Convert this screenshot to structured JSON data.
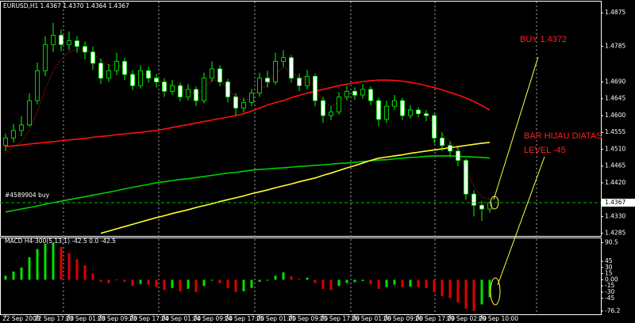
{
  "chart_data": [
    {
      "type": "candlestick",
      "title": "EURUSD,H1  1.4367 1.4370 1.4364 1.4367",
      "categories": [
        "22 Sep 2008",
        null,
        null,
        null,
        "22 Sep 17:00",
        null,
        null,
        null,
        "23 Sep 01:00",
        null,
        null,
        null,
        "23 Sep 09:00",
        null,
        null,
        null,
        "23 Sep 17:00",
        null,
        null,
        null,
        "24 Sep 01:00",
        null,
        null,
        null,
        "24 Sep 09:00",
        null,
        null,
        null,
        "24 Sep 17:00",
        null,
        null,
        null,
        "25 Sep 01:00",
        null,
        null,
        null,
        "25 Sep 09:00",
        null,
        null,
        null,
        "25 Sep 17:00",
        null,
        null,
        null,
        "26 Sep 01:00",
        null,
        null,
        null,
        "26 Sep 09:00",
        null,
        null,
        null,
        "26 Sep 17:00",
        null,
        null,
        null,
        "29 Sep 02:00",
        null,
        null,
        null,
        "29 Sep 10:00",
        null
      ],
      "open": [
        1.452,
        1.454,
        1.456,
        1.4575,
        1.464,
        1.472,
        1.479,
        1.4815,
        1.479,
        1.48,
        1.4785,
        1.477,
        1.474,
        1.47,
        1.472,
        1.4745,
        1.471,
        1.468,
        1.472,
        1.47,
        1.469,
        1.4665,
        1.468,
        1.465,
        1.467,
        1.464,
        1.47,
        1.4725,
        1.469,
        1.465,
        1.462,
        1.4635,
        1.466,
        1.47,
        1.469,
        1.4745,
        1.4755,
        1.47,
        1.468,
        1.4705,
        1.464,
        1.46,
        1.461,
        1.465,
        1.4665,
        1.4655,
        1.467,
        1.464,
        1.459,
        1.4625,
        1.464,
        1.46,
        1.4615,
        1.4605,
        1.46,
        1.454,
        1.452,
        1.4505,
        1.448,
        1.439,
        1.436,
        1.435
      ],
      "high": [
        1.4552,
        1.4578,
        1.4598,
        1.466,
        1.4742,
        1.4812,
        1.4848,
        1.483,
        1.4825,
        1.4812,
        1.4798,
        1.4785,
        1.4752,
        1.4738,
        1.4768,
        1.4755,
        1.4722,
        1.4735,
        1.473,
        1.4712,
        1.47,
        1.4695,
        1.4688,
        1.4685,
        1.4678,
        1.4715,
        1.4745,
        1.4735,
        1.4698,
        1.466,
        1.4648,
        1.4672,
        1.4715,
        1.472,
        1.4768,
        1.4775,
        1.4762,
        1.4712,
        1.4722,
        1.4712,
        1.465,
        1.4625,
        1.4662,
        1.468,
        1.4675,
        1.4684,
        1.4678,
        1.4648,
        1.464,
        1.4655,
        1.4648,
        1.4628,
        1.4622,
        1.4615,
        1.4605,
        1.4555,
        1.4532,
        1.4515,
        1.4485,
        1.44,
        1.4372,
        1.437
      ],
      "low": [
        1.4505,
        1.4528,
        1.4545,
        1.457,
        1.463,
        1.4705,
        1.477,
        1.4772,
        1.4775,
        1.4768,
        1.475,
        1.4722,
        1.4685,
        1.469,
        1.4708,
        1.4695,
        1.4668,
        1.4672,
        1.4688,
        1.4675,
        1.465,
        1.4655,
        1.4638,
        1.464,
        1.4625,
        1.4632,
        1.469,
        1.4678,
        1.4635,
        1.46,
        1.4608,
        1.4625,
        1.465,
        1.4675,
        1.4682,
        1.473,
        1.4688,
        1.4665,
        1.467,
        1.4625,
        1.458,
        1.4588,
        1.4602,
        1.464,
        1.4642,
        1.4645,
        1.4628,
        1.4572,
        1.458,
        1.4615,
        1.4588,
        1.4592,
        1.4595,
        1.4585,
        1.4525,
        1.4505,
        1.449,
        1.4465,
        1.4375,
        1.433,
        1.4318,
        1.434
      ],
      "close": [
        1.454,
        1.456,
        1.4575,
        1.464,
        1.472,
        1.479,
        1.4815,
        1.479,
        1.48,
        1.4785,
        1.477,
        1.474,
        1.47,
        1.472,
        1.4745,
        1.471,
        1.468,
        1.472,
        1.47,
        1.469,
        1.4665,
        1.468,
        1.465,
        1.467,
        1.464,
        1.47,
        1.4725,
        1.469,
        1.465,
        1.462,
        1.4635,
        1.466,
        1.47,
        1.469,
        1.4745,
        1.4755,
        1.47,
        1.468,
        1.4705,
        1.464,
        1.46,
        1.461,
        1.465,
        1.4665,
        1.4655,
        1.467,
        1.464,
        1.459,
        1.4625,
        1.464,
        1.46,
        1.4615,
        1.4605,
        1.46,
        1.454,
        1.452,
        1.4505,
        1.448,
        1.439,
        1.436,
        1.435,
        1.4367
      ],
      "up_color": "#000000",
      "down_color": "#ffffff",
      "wick_color": "#00ff00",
      "lines": [
        {
          "color": "#ff1010",
          "values": [
            1.4517,
            1.4519,
            1.4521,
            1.4524,
            1.4526,
            1.4528,
            1.453,
            1.4533,
            1.4535,
            1.4537,
            1.4539,
            1.4542,
            1.4544,
            1.4546,
            1.4549,
            1.4551,
            1.4553,
            1.4555,
            1.4558,
            1.456,
            1.4564,
            1.4568,
            1.4572,
            1.4576,
            1.458,
            1.4584,
            1.4588,
            1.4592,
            1.4596,
            1.46,
            1.4605,
            1.4612,
            1.462,
            1.4628,
            1.4635,
            1.464,
            1.4648,
            1.4654,
            1.466,
            1.4665,
            1.467,
            1.4675,
            1.468,
            1.4684,
            1.4688,
            1.4691,
            1.4693,
            1.4695,
            1.4695,
            1.4694,
            1.4692,
            1.4689,
            1.4685,
            1.468,
            1.4675,
            1.4669,
            1.4662,
            1.4655,
            1.4647,
            1.4638,
            1.4627,
            1.4615
          ]
        },
        {
          "color": "#00d000",
          "values": [
            1.4342,
            1.4346,
            1.435,
            1.4354,
            1.4358,
            1.4363,
            1.4367,
            1.4371,
            1.4375,
            1.4379,
            1.4383,
            1.4387,
            1.4391,
            1.4395,
            1.4399,
            1.4404,
            1.4408,
            1.4412,
            1.4416,
            1.442,
            1.4423,
            1.4426,
            1.4429,
            1.4431,
            1.4434,
            1.4437,
            1.444,
            1.4443,
            1.4446,
            1.4448,
            1.4451,
            1.4454,
            1.4456,
            1.4457,
            1.4459,
            1.446,
            1.4462,
            1.4464,
            1.4465,
            1.4467,
            1.4468,
            1.447,
            1.4472,
            1.4473,
            1.4475,
            1.4477,
            1.4479,
            1.4481,
            1.4482,
            1.4484,
            1.4486,
            1.4488,
            1.4489,
            1.4491,
            1.4492,
            1.4492,
            1.4492,
            1.4491,
            1.449,
            1.4489,
            1.4488,
            1.4486
          ]
        },
        {
          "color": "#ffff30",
          "values": [
            null,
            null,
            null,
            null,
            null,
            null,
            null,
            null,
            null,
            null,
            null,
            null,
            1.4285,
            1.4291,
            1.4297,
            1.4303,
            1.4309,
            1.4315,
            1.4321,
            1.4327,
            1.4332,
            1.4338,
            1.4343,
            1.4348,
            1.4354,
            1.4359,
            1.4364,
            1.437,
            1.4375,
            1.438,
            1.4385,
            1.4391,
            1.4396,
            1.4401,
            1.4407,
            1.4412,
            1.4417,
            1.4423,
            1.4428,
            1.4433,
            1.444,
            1.4446,
            1.4453,
            1.446,
            1.4466,
            1.4473,
            1.448,
            1.4486,
            1.4489,
            1.4492,
            1.4495,
            1.4499,
            1.4502,
            1.4505,
            1.4508,
            1.4511,
            1.4514,
            1.4517,
            1.452,
            1.4523,
            1.4526,
            1.4528
          ]
        },
        {
          "color": "#ff2020",
          "dash": "dotted",
          "values": [
            1.45,
            1.4515,
            1.453,
            1.456,
            1.461,
            1.467,
            1.472,
            1.475,
            1.477,
            1.4778,
            1.4778,
            1.4768,
            1.4748,
            1.4735,
            1.4735,
            1.4727,
            1.471,
            1.4712,
            1.4708,
            1.47,
            1.4685,
            1.4682,
            1.4668,
            1.4668,
            1.4655,
            1.4672,
            1.4695,
            1.4693,
            1.4673,
            1.4648,
            1.464,
            1.4648,
            1.4672,
            1.468,
            1.471,
            1.473,
            1.4718,
            1.47,
            1.4702,
            1.4672,
            1.4638,
            1.4625,
            1.4636,
            1.465,
            1.4652,
            1.466,
            1.465,
            1.4622,
            1.4623,
            1.4631,
            1.4617,
            1.4616,
            1.4611,
            1.4606,
            1.4575,
            1.455,
            1.453,
            1.4508,
            1.4455,
            1.441,
            1.4382,
            1.4375
          ]
        }
      ],
      "ylim": [
        1.4278,
        1.4905
      ],
      "yticks": [
        1.4875,
        1.4785,
        {
          "value": 1.469,
          "label": "1.4690"
        },
        1.4645,
        {
          "value": 1.46,
          "label": "1.4600"
        },
        1.4555,
        {
          "value": 1.451,
          "label": "1.4510"
        },
        1.4465,
        {
          "value": 1.442,
          "label": "1.4420"
        },
        {
          "value": 1.433,
          "label": "1.4330"
        },
        1.4285
      ],
      "current_price": 1.4367,
      "order_label": "#4589904 buy",
      "annotations": [
        "BUY 1.4372",
        "BAR HIJAU DIATAS",
        "LEVEL -45"
      ]
    },
    {
      "type": "bar",
      "title": "MACD H4-300(5,13,1) -42.5 0.0 -42.5",
      "values": [
        10,
        20,
        30,
        55,
        75,
        88,
        90,
        80,
        65,
        50,
        35,
        15,
        -5,
        -8,
        0,
        -5,
        -15,
        -10,
        -12,
        -18,
        -25,
        -20,
        -28,
        -22,
        -30,
        -15,
        -2,
        -8,
        -20,
        -30,
        -28,
        -20,
        -5,
        -2,
        10,
        18,
        8,
        2,
        5,
        -8,
        -22,
        -25,
        -15,
        -8,
        -6,
        -3,
        -10,
        -22,
        -18,
        -12,
        -18,
        -17,
        -18,
        -20,
        -30,
        -40,
        -45,
        -55,
        -70,
        -76,
        -60,
        -42.5
      ],
      "up_color": "#00e000",
      "down_color": "#e00000",
      "ylim": [
        -84,
        101
      ],
      "yticks": [
        90.5,
        45,
        30,
        15,
        {
          "value": 0,
          "label": "0.00"
        },
        -15,
        -30,
        -45,
        -76.2
      ]
    }
  ]
}
